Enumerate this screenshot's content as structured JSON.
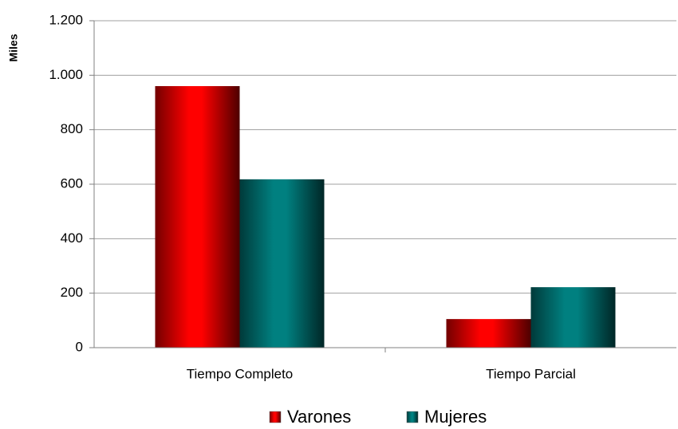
{
  "chart_data": {
    "type": "bar",
    "y_label": "Miles",
    "categories": [
      "Tiempo Completo",
      "Tiempo Parcial"
    ],
    "series": [
      {
        "name": "Varones",
        "color": "#ff0000",
        "values": [
          960,
          105
        ]
      },
      {
        "name": "Mujeres",
        "color": "#008080",
        "values": [
          618,
          222
        ]
      }
    ],
    "ylim": [
      0,
      1200
    ],
    "yticks": [
      0,
      200,
      400,
      600,
      800,
      {
        "value": 1000,
        "label": "1.000"
      },
      {
        "value": 1200,
        "label": "1.200"
      }
    ],
    "grid": true
  }
}
